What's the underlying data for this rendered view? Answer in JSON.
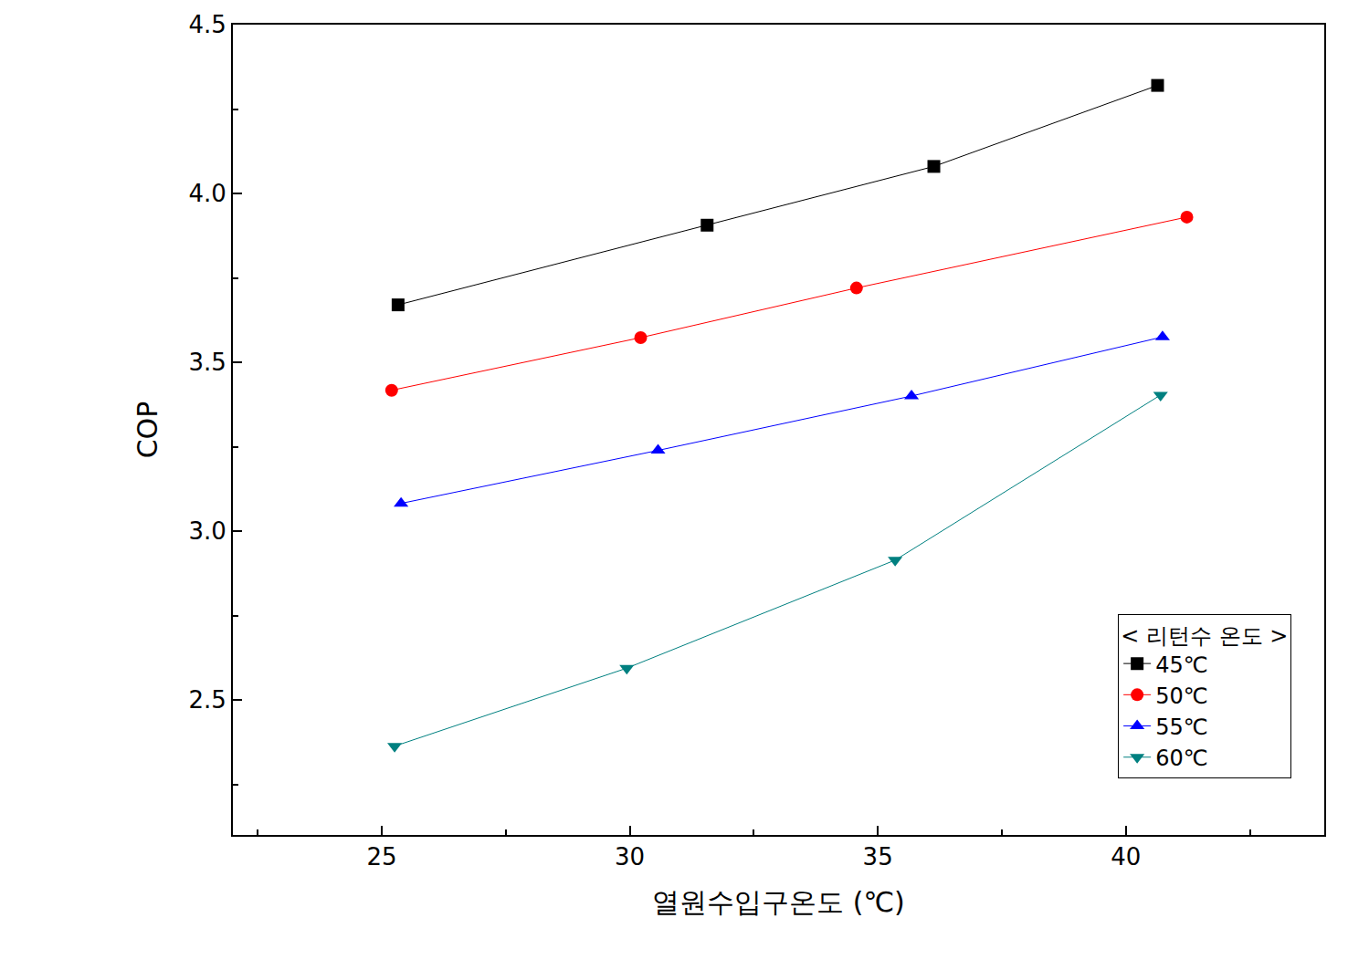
{
  "chart_data": {
    "type": "line",
    "x_label": "열원수입구온도 (℃)",
    "y_label": "COP",
    "legend_title": "< 리턴수 온도 >",
    "series": [
      {
        "name": "45℃",
        "color": "#000000",
        "marker": "square",
        "x": [
          25.33,
          31.56,
          36.13,
          40.64
        ],
        "values": [
          3.67,
          3.906,
          4.08,
          4.32
        ]
      },
      {
        "name": "50℃",
        "color": "#ff0000",
        "marker": "circle",
        "x": [
          25.2,
          30.22,
          34.57,
          41.23
        ],
        "values": [
          3.417,
          3.573,
          3.72,
          3.93
        ]
      },
      {
        "name": "55℃",
        "color": "#0000ff",
        "marker": "triangle-up",
        "x": [
          25.39,
          30.57,
          35.68,
          40.74
        ],
        "values": [
          3.082,
          3.239,
          3.4,
          3.575
        ]
      },
      {
        "name": "60℃",
        "color": "#008080",
        "marker": "triangle-down",
        "x": [
          25.26,
          29.94,
          35.35,
          40.7
        ],
        "values": [
          2.363,
          2.594,
          2.914,
          3.403
        ]
      }
    ],
    "xlim": [
      22,
      44
    ],
    "xticks": [
      25,
      30,
      35,
      40
    ],
    "ylim": [
      2.1,
      4.5
    ],
    "yticks": [
      {
        "value": 2.5,
        "label": "2.5"
      },
      {
        "value": 3.0,
        "label": "3.0"
      },
      {
        "value": 3.5,
        "label": "3.5"
      },
      {
        "value": 4.0,
        "label": "4.0"
      },
      {
        "value": 4.5,
        "label": "4.5"
      }
    ],
    "grid": false,
    "legend": "lower right"
  }
}
